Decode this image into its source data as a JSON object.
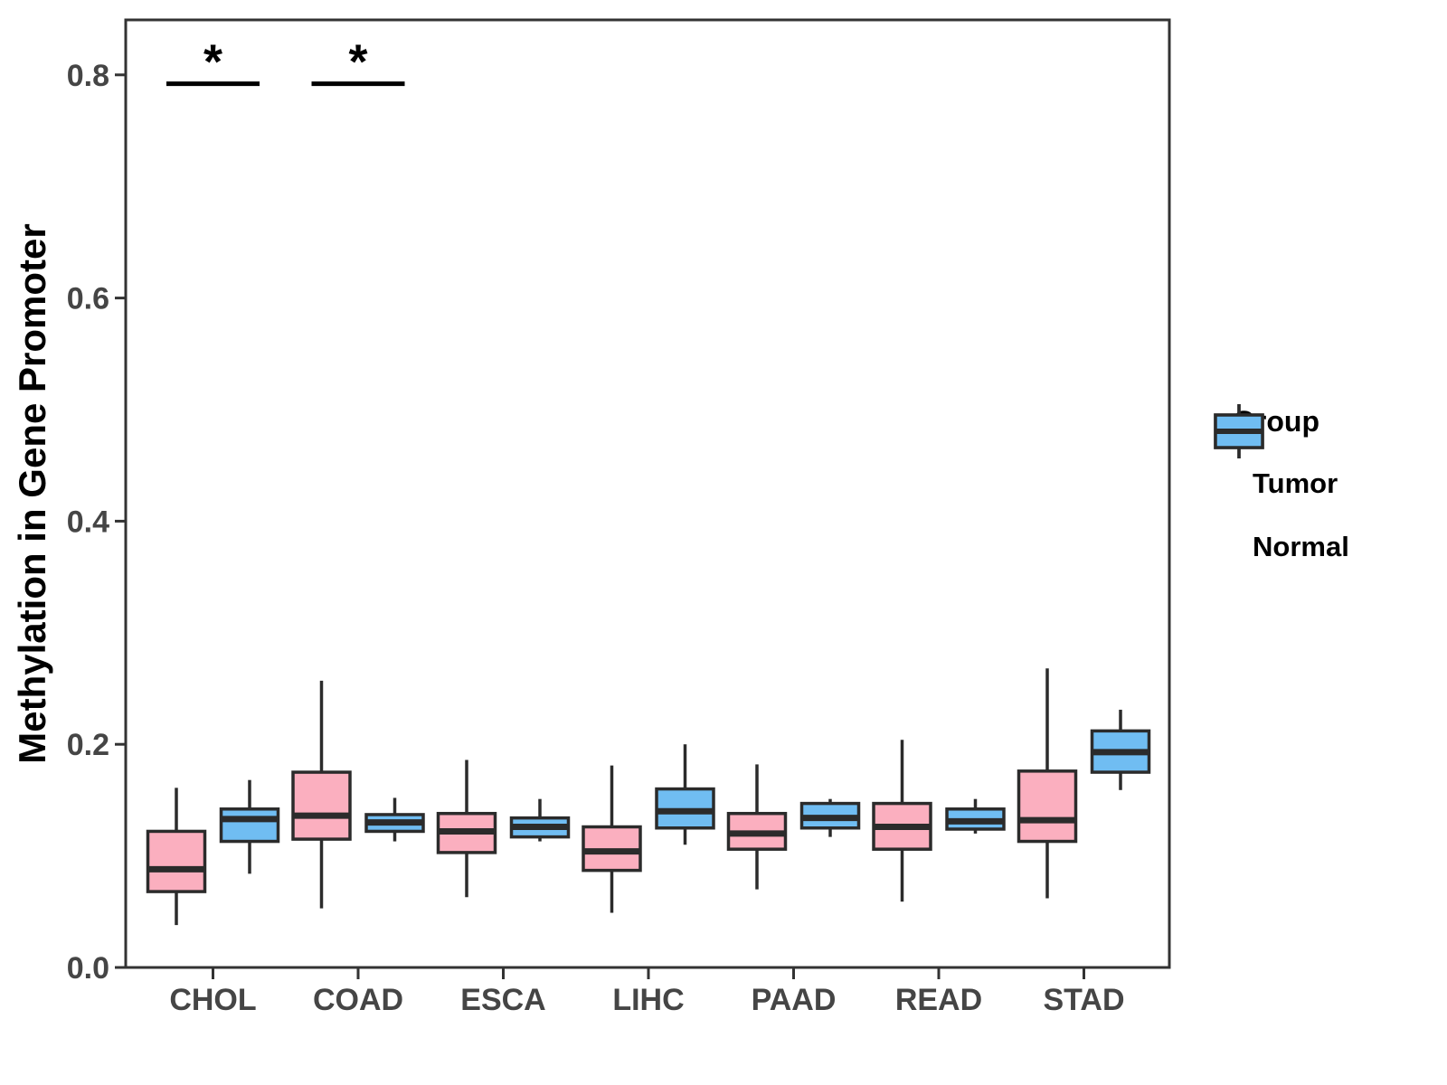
{
  "chart_data": {
    "type": "boxplot",
    "title": "",
    "xlabel": "",
    "ylabel": "Methylation in Gene Promoter",
    "categories": [
      "CHOL",
      "COAD",
      "ESCA",
      "LIHC",
      "PAAD",
      "READ",
      "STAD"
    ],
    "y_ticks": [
      {
        "label": "0.0",
        "value": 0.0
      },
      {
        "label": "0.2",
        "value": 0.2
      },
      {
        "label": "0.4",
        "value": 0.4
      },
      {
        "label": "0.6",
        "value": 0.6
      },
      {
        "label": "0.8",
        "value": 0.8
      }
    ],
    "ylim": [
      0.0,
      0.85
    ],
    "grid": false,
    "legend_position": "right",
    "legend_title": "Group",
    "groups": [
      {
        "name": "Tumor",
        "color": "#FBAFBF"
      },
      {
        "name": "Normal",
        "color": "#70BDF2"
      }
    ],
    "series": [
      {
        "name": "Tumor",
        "boxes": [
          {
            "category": "CHOL",
            "low": 0.038,
            "q1": 0.068,
            "med": 0.088,
            "q3": 0.122,
            "high": 0.161
          },
          {
            "category": "COAD",
            "low": 0.053,
            "q1": 0.115,
            "med": 0.136,
            "q3": 0.175,
            "high": 0.257
          },
          {
            "category": "ESCA",
            "low": 0.063,
            "q1": 0.103,
            "med": 0.122,
            "q3": 0.138,
            "high": 0.186
          },
          {
            "category": "LIHC",
            "low": 0.049,
            "q1": 0.087,
            "med": 0.104,
            "q3": 0.126,
            "high": 0.181
          },
          {
            "category": "PAAD",
            "low": 0.07,
            "q1": 0.106,
            "med": 0.12,
            "q3": 0.138,
            "high": 0.182
          },
          {
            "category": "READ",
            "low": 0.059,
            "q1": 0.106,
            "med": 0.126,
            "q3": 0.147,
            "high": 0.204
          },
          {
            "category": "STAD",
            "low": 0.062,
            "q1": 0.113,
            "med": 0.132,
            "q3": 0.176,
            "high": 0.268
          }
        ]
      },
      {
        "name": "Normal",
        "boxes": [
          {
            "category": "CHOL",
            "low": 0.084,
            "q1": 0.113,
            "med": 0.133,
            "q3": 0.142,
            "high": 0.168
          },
          {
            "category": "COAD",
            "low": 0.113,
            "q1": 0.122,
            "med": 0.13,
            "q3": 0.137,
            "high": 0.152
          },
          {
            "category": "ESCA",
            "low": 0.113,
            "q1": 0.117,
            "med": 0.126,
            "q3": 0.134,
            "high": 0.151
          },
          {
            "category": "LIHC",
            "low": 0.11,
            "q1": 0.125,
            "med": 0.14,
            "q3": 0.16,
            "high": 0.2
          },
          {
            "category": "PAAD",
            "low": 0.117,
            "q1": 0.125,
            "med": 0.134,
            "q3": 0.147,
            "high": 0.151
          },
          {
            "category": "READ",
            "low": 0.12,
            "q1": 0.124,
            "med": 0.131,
            "q3": 0.142,
            "high": 0.151
          },
          {
            "category": "STAD",
            "low": 0.159,
            "q1": 0.175,
            "med": 0.193,
            "q3": 0.212,
            "high": 0.231
          }
        ]
      }
    ],
    "annotations": [
      {
        "category": "CHOL",
        "label": "*",
        "bar_y": 0.792
      },
      {
        "category": "COAD",
        "label": "*",
        "bar_y": 0.792
      }
    ],
    "colors": {
      "box_stroke": "#2B2B2B",
      "panel_border": "#333333",
      "tick_label": "#454545",
      "axis_title": "#000000"
    }
  }
}
